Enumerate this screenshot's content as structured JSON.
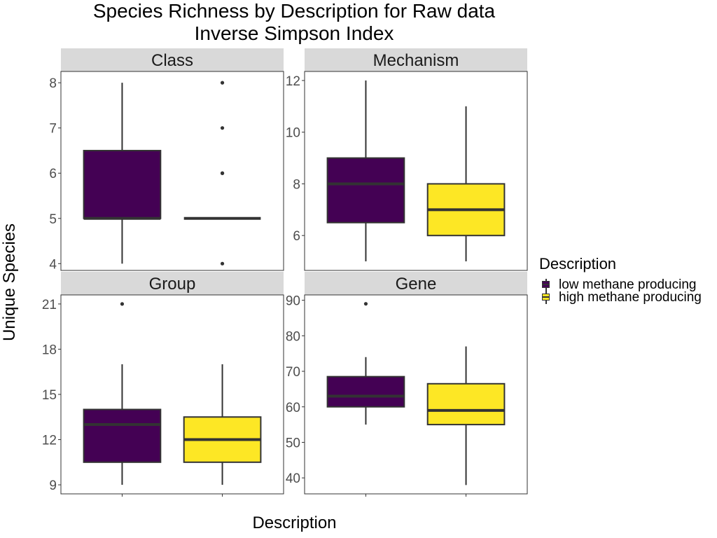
{
  "title_line1": "Species Richness by Description for Raw data",
  "title_line2": "Inverse Simpson Index",
  "xlabel": "Description",
  "ylabel": "Unique Species",
  "legend": {
    "title": "Description",
    "placement": "right",
    "items": [
      {
        "label": "low methane producing",
        "color": "#440154"
      },
      {
        "label": "high methane producing",
        "color": "#FDE725"
      }
    ]
  },
  "chart_data": [
    {
      "type": "box",
      "facet": "Class",
      "ylim": [
        3.85,
        8.25
      ],
      "yticks": [
        4,
        5,
        6,
        7,
        8
      ],
      "grid": false,
      "boxes": [
        {
          "group": "low methane producing",
          "min": 4,
          "q1": 5,
          "median": 5,
          "q3": 6.5,
          "max": 8,
          "outliers": []
        },
        {
          "group": "high methane producing",
          "min": 5,
          "q1": 5,
          "median": 5,
          "q3": 5,
          "max": 5,
          "outliers": [
            4,
            6,
            6,
            7,
            8
          ]
        }
      ]
    },
    {
      "type": "box",
      "facet": "Mechanism",
      "ylim": [
        4.65,
        12.35
      ],
      "yticks": [
        6,
        8,
        10,
        12
      ],
      "grid": false,
      "boxes": [
        {
          "group": "low methane producing",
          "min": 5,
          "q1": 6.5,
          "median": 8,
          "q3": 9,
          "max": 12,
          "outliers": []
        },
        {
          "group": "high methane producing",
          "min": 5,
          "q1": 6,
          "median": 7,
          "q3": 8,
          "max": 11,
          "outliers": []
        }
      ]
    },
    {
      "type": "box",
      "facet": "Group",
      "ylim": [
        8.4,
        21.6
      ],
      "yticks": [
        9,
        12,
        15,
        18,
        21
      ],
      "grid": false,
      "boxes": [
        {
          "group": "low methane producing",
          "min": 9,
          "q1": 10.5,
          "median": 13,
          "q3": 14,
          "max": 17,
          "outliers": [
            21
          ]
        },
        {
          "group": "high methane producing",
          "min": 9,
          "q1": 10.5,
          "median": 12,
          "q3": 13.5,
          "max": 17,
          "outliers": []
        }
      ]
    },
    {
      "type": "box",
      "facet": "Gene",
      "ylim": [
        35.5,
        91.5
      ],
      "yticks": [
        40,
        50,
        60,
        70,
        80,
        90
      ],
      "grid": false,
      "boxes": [
        {
          "group": "low methane producing",
          "min": 55,
          "q1": 60,
          "median": 63,
          "q3": 68.5,
          "max": 74,
          "outliers": [
            89
          ]
        },
        {
          "group": "high methane producing",
          "min": 38,
          "q1": 55,
          "median": 59,
          "q3": 66.5,
          "max": 77,
          "outliers": []
        }
      ]
    }
  ]
}
